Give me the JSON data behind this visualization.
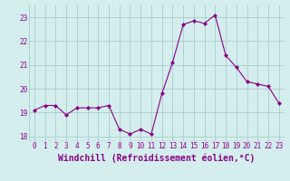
{
  "hours": [
    0,
    1,
    2,
    3,
    4,
    5,
    6,
    7,
    8,
    9,
    10,
    11,
    12,
    13,
    14,
    15,
    16,
    17,
    18,
    19,
    20,
    21,
    22,
    23
  ],
  "values": [
    19.1,
    19.3,
    19.3,
    18.9,
    19.2,
    19.2,
    19.2,
    19.3,
    18.3,
    18.1,
    18.3,
    18.1,
    19.8,
    21.1,
    22.7,
    22.85,
    22.75,
    23.1,
    21.4,
    20.9,
    20.3,
    20.2,
    20.1,
    19.4
  ],
  "line_color": "#880088",
  "marker": "D",
  "marker_size": 2.0,
  "background_color": "#d4eeee",
  "grid_color": "#aacccc",
  "xlabel": "Windchill (Refroidissement éolien,°C)",
  "ylim": [
    17.8,
    23.5
  ],
  "yticks": [
    18,
    19,
    20,
    21,
    22,
    23
  ],
  "xticks": [
    0,
    1,
    2,
    3,
    4,
    5,
    6,
    7,
    8,
    9,
    10,
    11,
    12,
    13,
    14,
    15,
    16,
    17,
    18,
    19,
    20,
    21,
    22,
    23
  ],
  "tick_label_color": "#880088",
  "tick_fontsize": 5.5,
  "xlabel_fontsize": 7.0
}
